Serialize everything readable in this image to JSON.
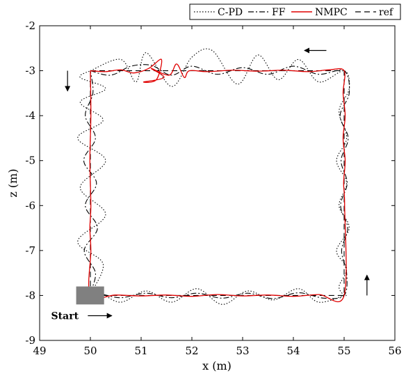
{
  "chart_data": {
    "type": "line",
    "xlabel": "x (m)",
    "ylabel": "z (m)",
    "xlim": [
      49,
      56
    ],
    "ylim": [
      -9,
      -2
    ],
    "xticks": [
      49,
      50,
      51,
      52,
      53,
      54,
      55,
      56
    ],
    "yticks": [
      -9,
      -8,
      -7,
      -6,
      -5,
      -4,
      -3,
      -2
    ],
    "grid": false,
    "legend_position": "top-right",
    "annotations": [
      {
        "text": "Start",
        "x": 49.85,
        "y": -8.45
      }
    ],
    "start_marker": {
      "x_range": [
        49.72,
        50.27
      ],
      "y_range": [
        -8.2,
        -7.8
      ],
      "color": "#808080"
    },
    "direction_arrows": [
      {
        "from": [
          54.65,
          -2.55
        ],
        "to": [
          54.22,
          -2.55
        ]
      },
      {
        "from": [
          49.55,
          -3.0
        ],
        "to": [
          49.55,
          -3.45
        ]
      },
      {
        "from": [
          55.45,
          -8.0
        ],
        "to": [
          55.45,
          -7.55
        ]
      },
      {
        "from": [
          49.95,
          -8.45
        ],
        "to": [
          50.42,
          -8.45
        ]
      }
    ],
    "series": [
      {
        "name": "C-PD",
        "style": "dotted",
        "color": "#000000",
        "x": [
          50.0,
          50.6,
          50.9,
          51.1,
          51.6,
          52.0,
          52.4,
          52.9,
          53.3,
          53.7,
          54.1,
          54.5,
          55.0,
          55.1,
          54.9,
          55.05,
          54.85,
          55.05,
          54.9,
          55.1,
          54.85,
          55.05,
          54.9,
          55.0,
          55.0,
          54.5,
          54.1,
          53.6,
          53.1,
          52.6,
          52.1,
          51.6,
          51.1,
          50.6,
          50.2,
          50.0,
          50.25,
          49.75,
          50.3,
          49.8,
          50.3,
          49.75,
          50.25,
          49.8,
          50.3,
          49.8,
          50.0
        ],
        "y": [
          -3.0,
          -2.75,
          -3.25,
          -2.6,
          -3.35,
          -2.7,
          -2.55,
          -3.3,
          -2.65,
          -3.2,
          -2.75,
          -3.25,
          -3.0,
          -3.4,
          -3.9,
          -4.5,
          -5.0,
          -5.5,
          -6.0,
          -6.5,
          -7.0,
          -7.4,
          -7.8,
          -8.0,
          -8.0,
          -8.15,
          -7.85,
          -8.1,
          -7.9,
          -8.2,
          -7.85,
          -8.15,
          -7.9,
          -8.15,
          -7.95,
          -8.0,
          -7.3,
          -6.8,
          -6.2,
          -5.6,
          -5.0,
          -4.5,
          -4.1,
          -3.7,
          -3.4,
          -3.15,
          -3.0
        ]
      },
      {
        "name": "FF",
        "style": "dashdot",
        "color": "#000000",
        "x": [
          50.0,
          50.4,
          50.8,
          51.2,
          51.6,
          52.0,
          52.5,
          53.0,
          53.5,
          54.0,
          54.5,
          55.0,
          55.1,
          54.92,
          55.08,
          54.94,
          55.06,
          54.93,
          55.07,
          54.95,
          55.05,
          55.0,
          54.6,
          54.1,
          53.6,
          53.1,
          52.6,
          52.1,
          51.6,
          51.1,
          50.6,
          50.2,
          50.0,
          50.1,
          49.88,
          50.14,
          49.9,
          50.12,
          49.87,
          50.1,
          49.9,
          50.05,
          50.0
        ],
        "y": [
          -3.0,
          -3.1,
          -2.9,
          -2.88,
          -3.1,
          -2.9,
          -3.08,
          -2.93,
          -3.08,
          -2.9,
          -3.08,
          -3.0,
          -3.5,
          -4.0,
          -4.5,
          -5.0,
          -5.5,
          -6.0,
          -6.5,
          -7.0,
          -7.5,
          -8.0,
          -8.06,
          -7.94,
          -8.07,
          -7.95,
          -8.06,
          -7.95,
          -8.05,
          -7.95,
          -8.05,
          -7.97,
          -8.0,
          -7.5,
          -7.0,
          -6.5,
          -6.0,
          -5.5,
          -5.0,
          -4.5,
          -4.0,
          -3.5,
          -3.0
        ]
      },
      {
        "name": "NMPC",
        "style": "solid",
        "color": "#e00000",
        "x": [
          50.0,
          50.3,
          50.6,
          50.85,
          51.15,
          51.4,
          51.3,
          51.05,
          51.45,
          51.2,
          51.55,
          51.7,
          51.85,
          51.95,
          52.3,
          52.8,
          53.3,
          53.8,
          54.3,
          54.7,
          55.0,
          54.98,
          55.02,
          54.98,
          55.02,
          54.99,
          55.01,
          55.0,
          54.5,
          54.0,
          53.5,
          53.0,
          52.5,
          52.0,
          51.5,
          51.0,
          50.5,
          50.0,
          50.01,
          49.99,
          50.01,
          49.99,
          50.01,
          50.0
        ],
        "y": [
          -3.0,
          -3.02,
          -2.98,
          -3.05,
          -2.95,
          -2.75,
          -3.2,
          -3.25,
          -3.15,
          -2.95,
          -3.1,
          -2.85,
          -3.15,
          -3.0,
          -3.02,
          -2.99,
          -3.01,
          -2.99,
          -3.02,
          -2.98,
          -3.0,
          -3.5,
          -4.0,
          -4.5,
          -5.0,
          -5.5,
          -6.0,
          -8.0,
          -7.98,
          -8.02,
          -7.99,
          -8.01,
          -7.98,
          -8.02,
          -7.99,
          -8.01,
          -7.99,
          -8.0,
          -7.0,
          -6.5,
          -6.0,
          -5.0,
          -4.0,
          -3.0
        ]
      },
      {
        "name": "ref",
        "style": "dashed",
        "color": "#000000",
        "x": [
          50.0,
          55.0,
          55.0,
          50.0,
          50.0
        ],
        "y": [
          -3.0,
          -3.0,
          -8.0,
          -8.0,
          -3.0
        ]
      }
    ]
  }
}
